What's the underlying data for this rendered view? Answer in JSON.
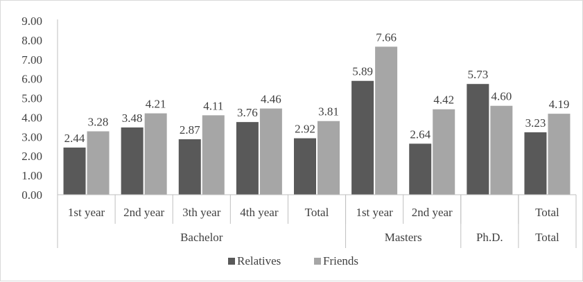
{
  "chart_data": {
    "type": "bar",
    "ylim": [
      0,
      9
    ],
    "yticks": [
      "0.00",
      "1.00",
      "2.00",
      "3.00",
      "4.00",
      "5.00",
      "6.00",
      "7.00",
      "8.00",
      "9.00"
    ],
    "categories": [
      "1st year",
      "2nd year",
      "3th year",
      "4th year",
      "Total",
      "1st year",
      "2nd year",
      "",
      "Total"
    ],
    "groups": [
      {
        "label": "Bachelor",
        "span": [
          0,
          4
        ]
      },
      {
        "label": "Masters",
        "span": [
          5,
          6
        ]
      },
      {
        "label": "Ph.D.",
        "span": [
          7,
          7
        ]
      },
      {
        "label": "Total",
        "span": [
          8,
          8
        ]
      }
    ],
    "series": [
      {
        "name": "Relatives",
        "color": "#595959",
        "values": [
          2.44,
          3.48,
          2.87,
          3.76,
          2.92,
          5.89,
          2.64,
          5.73,
          3.23
        ]
      },
      {
        "name": "Friends",
        "color": "#a6a6a6",
        "values": [
          3.28,
          4.21,
          4.11,
          4.46,
          3.81,
          7.66,
          4.42,
          4.6,
          4.19
        ]
      }
    ],
    "legend_position": "bottom",
    "grid": false
  }
}
